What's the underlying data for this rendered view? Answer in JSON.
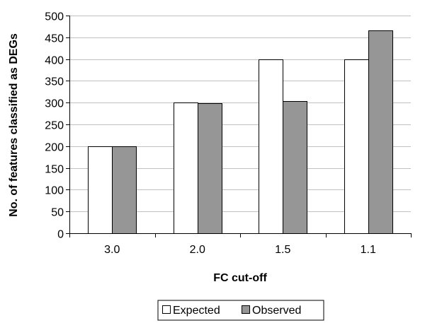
{
  "chart_data": {
    "type": "bar",
    "categories": [
      "3.0",
      "2.0",
      "1.5",
      "1.1"
    ],
    "series": [
      {
        "name": "Expected",
        "values": [
          200,
          300,
          400,
          400
        ],
        "color": "#ffffff"
      },
      {
        "name": "Observed",
        "values": [
          200,
          299,
          303,
          466
        ],
        "color": "#969696"
      }
    ],
    "xlabel": "FC cut-off",
    "ylabel": "No. of features classified as DEGs",
    "ylim": [
      0,
      500
    ],
    "yticks": [
      0,
      50,
      100,
      150,
      200,
      250,
      300,
      350,
      400,
      450,
      500
    ],
    "grid": true,
    "legend_position": "bottom",
    "gridline_color": "#c0c0c0",
    "bar_stroke_color": "#000000"
  }
}
